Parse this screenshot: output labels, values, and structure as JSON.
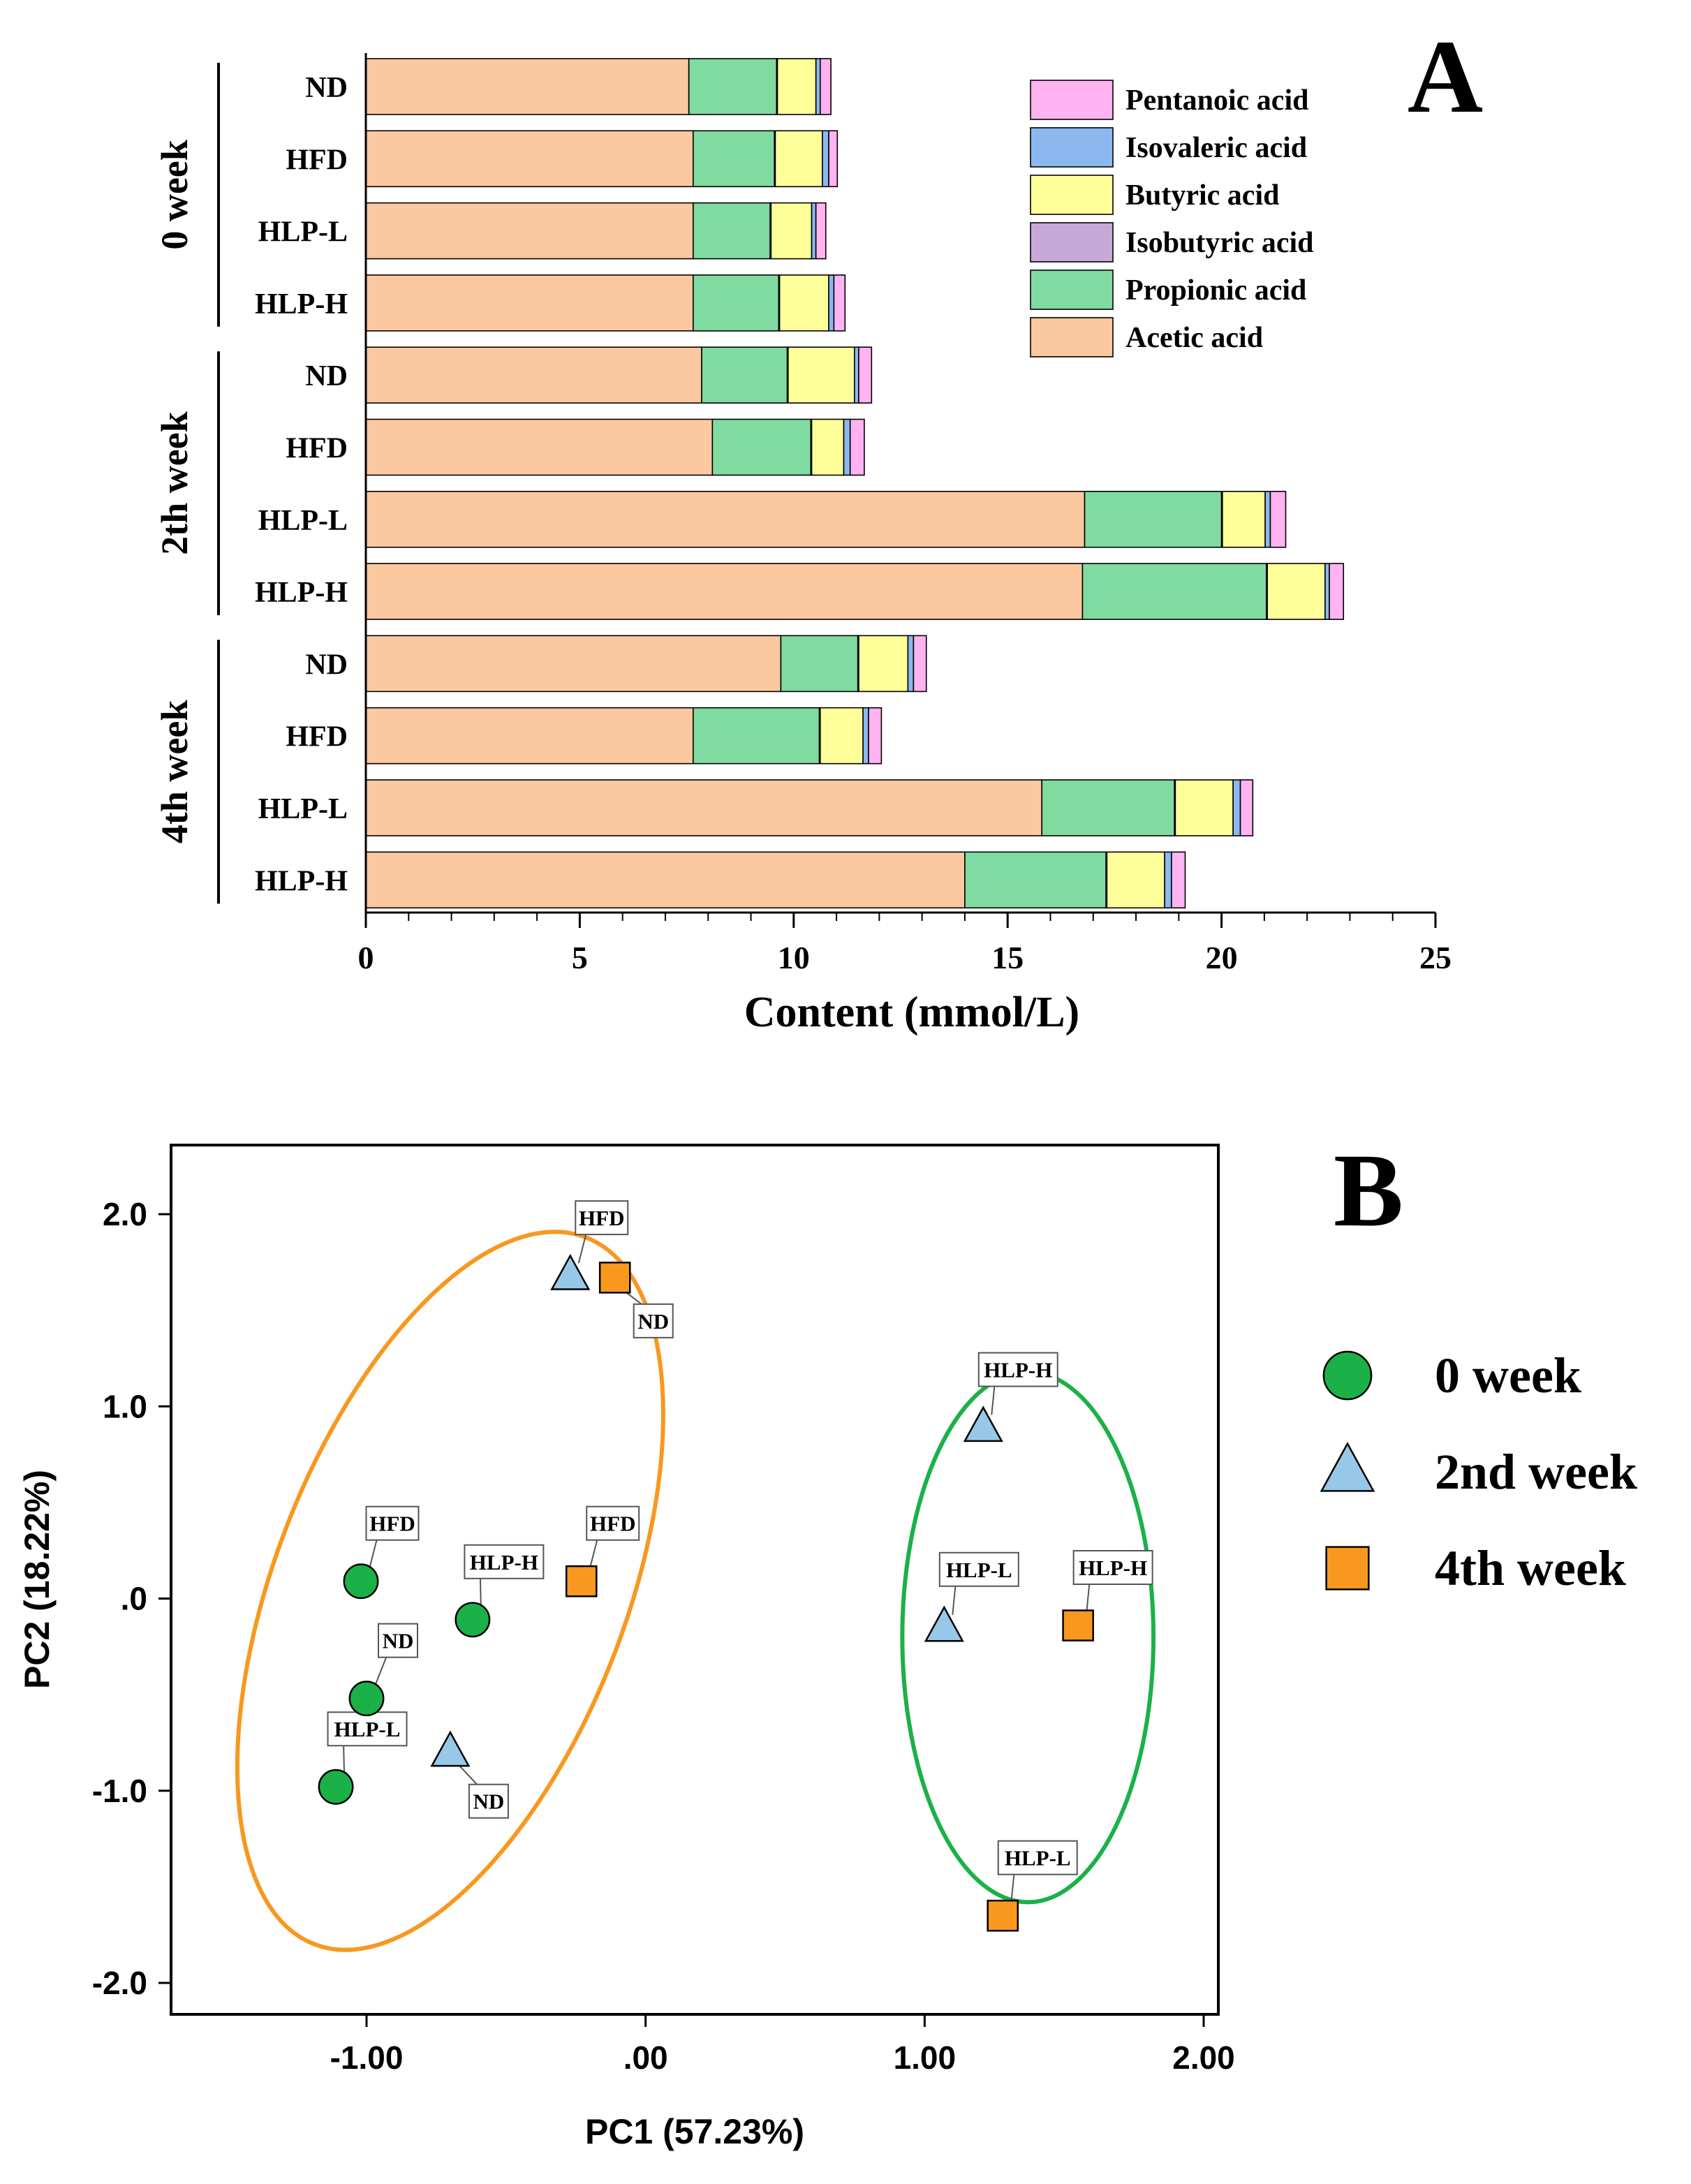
{
  "chart_data": [
    {
      "type": "bar",
      "orientation": "horizontal",
      "stacked": true,
      "panel_label": "A",
      "xlabel": "Content (mmol/L)",
      "xlim": [
        0,
        25
      ],
      "xticks": [
        0,
        5,
        10,
        15,
        20,
        25
      ],
      "groups": [
        {
          "label": "0 week",
          "categories": [
            "ND",
            "HFD",
            "HLP-L",
            "HLP-H"
          ]
        },
        {
          "label": "2th week",
          "categories": [
            "ND",
            "HFD",
            "HLP-L",
            "HLP-H"
          ]
        },
        {
          "label": "4th week",
          "categories": [
            "ND",
            "HFD",
            "HLP-L",
            "HLP-H"
          ]
        }
      ],
      "categories": [
        "0 week ND",
        "0 week HFD",
        "0 week HLP-L",
        "0 week HLP-H",
        "2th week ND",
        "2th week HFD",
        "2th week HLP-L",
        "2th week HLP-H",
        "4th week ND",
        "4th week HFD",
        "4th week HLP-L",
        "4th week HLP-H"
      ],
      "series": [
        {
          "name": "Acetic acid",
          "color": "#FBC89F",
          "values": [
            7.55,
            7.65,
            7.65,
            7.65,
            7.85,
            8.1,
            16.8,
            16.75,
            9.7,
            7.65,
            15.8,
            14.0
          ]
        },
        {
          "name": "Propionic acid",
          "color": "#7FDB9F",
          "values": [
            2.05,
            1.9,
            1.8,
            2.0,
            2.0,
            2.3,
            3.2,
            4.3,
            1.8,
            2.95,
            3.1,
            3.3
          ]
        },
        {
          "name": "Isobutyric acid",
          "color": "#C8A8D8",
          "values": [
            0.02,
            0.02,
            0.02,
            0.02,
            0.02,
            0.02,
            0.02,
            0.02,
            0.02,
            0.02,
            0.02,
            0.02
          ]
        },
        {
          "name": "Butyric acid",
          "color": "#FFFF99",
          "values": [
            0.9,
            1.1,
            0.95,
            1.15,
            1.55,
            0.75,
            1.0,
            1.35,
            1.15,
            1.0,
            1.35,
            1.35
          ]
        },
        {
          "name": "Isovaleric acid",
          "color": "#8CB8F0",
          "values": [
            0.1,
            0.15,
            0.1,
            0.12,
            0.1,
            0.15,
            0.12,
            0.1,
            0.13,
            0.13,
            0.17,
            0.16
          ]
        },
        {
          "name": "Pentanoic acid",
          "color": "#FFB3F0",
          "values": [
            0.25,
            0.2,
            0.23,
            0.26,
            0.3,
            0.33,
            0.36,
            0.33,
            0.3,
            0.3,
            0.29,
            0.32
          ]
        }
      ],
      "legend": [
        "Pentanoic acid",
        "Isovaleric acid",
        "Butyric acid",
        "Isobutyric acid",
        "Propionic acid",
        "Acetic acid"
      ],
      "legend_position": "top-right"
    },
    {
      "type": "scatter",
      "panel_label": "B",
      "xlabel": "PC1 (57.23%)",
      "ylabel": "PC2 (18.22%)",
      "xlim": [
        -1.7,
        2.05
      ],
      "ylim": [
        -2.3,
        2.3
      ],
      "xticks": [
        -1.0,
        0.0,
        1.0,
        2.0
      ],
      "xtick_labels": [
        "-1.00",
        ".00",
        "1.00",
        "2.00"
      ],
      "yticks": [
        2.0,
        1.0,
        0.0,
        -1.0,
        -2.0
      ],
      "ytick_labels": [
        "2.0",
        "1.0",
        ".0",
        "-1.0",
        "-2.0"
      ],
      "series": [
        {
          "name": "0 week",
          "marker": "circle",
          "color": "#1BB148",
          "points": [
            {
              "x": -1.02,
              "y": 0.09,
              "label": "HFD"
            },
            {
              "x": -0.62,
              "y": -0.11,
              "label": "HLP-H"
            },
            {
              "x": -1.0,
              "y": -0.52,
              "label": "ND"
            },
            {
              "x": -1.11,
              "y": -0.98,
              "label": "HLP-L"
            }
          ]
        },
        {
          "name": "2nd week",
          "marker": "triangle",
          "color": "#98C8E8",
          "points": [
            {
              "x": -0.27,
              "y": 1.68,
              "label": "HFD"
            },
            {
              "x": 1.21,
              "y": 0.89,
              "label": "HLP-H"
            },
            {
              "x": 1.07,
              "y": -0.15,
              "label": "HLP-L"
            },
            {
              "x": -0.7,
              "y": -0.8,
              "label": "ND"
            }
          ]
        },
        {
          "name": "4th week",
          "marker": "square",
          "color": "#F8981F",
          "points": [
            {
              "x": -0.11,
              "y": 1.67,
              "label": "ND"
            },
            {
              "x": -0.23,
              "y": 0.09,
              "label": "HFD"
            },
            {
              "x": 1.55,
              "y": -0.14,
              "label": "HLP-H"
            },
            {
              "x": 1.28,
              "y": -1.65,
              "label": "HLP-L"
            }
          ]
        }
      ],
      "ellipses": [
        {
          "color": "#F8981F",
          "center": [
            -0.7,
            0.04
          ],
          "semi_axes": [
            0.63,
            1.97
          ],
          "rotation_deg": 21
        },
        {
          "color": "#1BB148",
          "center": [
            1.37,
            -0.2
          ],
          "semi_axes": [
            0.45,
            1.38
          ],
          "rotation_deg": 0
        }
      ],
      "legend": [
        "0 week",
        "2nd week",
        "4th week"
      ],
      "legend_position": "right"
    }
  ]
}
